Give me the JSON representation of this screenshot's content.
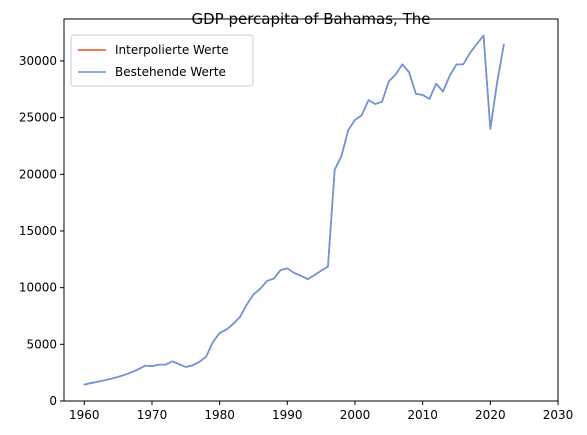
{
  "chart_data": {
    "type": "line",
    "title": "GDP percapita of Bahamas, The",
    "xlabel": "",
    "ylabel": "",
    "xlim": [
      1957,
      2030
    ],
    "ylim": [
      0,
      33700
    ],
    "xticks": [
      1960,
      1970,
      1980,
      1990,
      2000,
      2010,
      2020,
      2030
    ],
    "yticks": [
      0,
      5000,
      10000,
      15000,
      20000,
      25000,
      30000
    ],
    "grid": false,
    "legend_position": "top-left",
    "series": [
      {
        "name": "Interpolierte Werte",
        "color": "#e8501a",
        "x": [
          1960,
          1961,
          1962,
          1963,
          1964,
          1965,
          1966,
          1967,
          1968,
          1969,
          1970,
          1971,
          1972,
          1973,
          1974,
          1975,
          1976,
          1977,
          1978,
          1979,
          1980,
          1981,
          1982,
          1983,
          1984,
          1985,
          1986,
          1987,
          1988,
          1989,
          1990,
          1991,
          1992,
          1993,
          1994,
          1995,
          1996,
          1997,
          1998,
          1999,
          2000,
          2001,
          2002,
          2003,
          2004,
          2005,
          2006,
          2007,
          2008,
          2009,
          2010,
          2011,
          2012,
          2013,
          2014,
          2015,
          2016,
          2017,
          2018,
          2019,
          2020,
          2021,
          2022
        ],
        "values": [
          1450,
          1580,
          1700,
          1830,
          1970,
          2130,
          2320,
          2540,
          2800,
          3120,
          3070,
          3200,
          3200,
          3500,
          3250,
          3000,
          3150,
          3450,
          3900,
          5200,
          6000,
          6300,
          6800,
          7400,
          8500,
          9400,
          9900,
          10600,
          10800,
          11550,
          11700,
          11300,
          11050,
          10750,
          11100,
          11500,
          11850,
          20400,
          21600,
          23900,
          24800,
          25200,
          26550,
          26200,
          26400,
          28200,
          28800,
          29700,
          29000,
          27100,
          27000,
          26650,
          28000,
          27300,
          28700,
          29700,
          29700,
          30700,
          31500,
          32250,
          24000,
          28100,
          31450
        ]
      },
      {
        "name": "Bestehende Werte",
        "color": "#6495ed",
        "x": [
          1960,
          1961,
          1962,
          1963,
          1964,
          1965,
          1966,
          1967,
          1968,
          1969,
          1970,
          1971,
          1972,
          1973,
          1974,
          1975,
          1976,
          1977,
          1978,
          1979,
          1980,
          1981,
          1982,
          1983,
          1984,
          1985,
          1986,
          1987,
          1988,
          1989,
          1990,
          1991,
          1992,
          1993,
          1994,
          1995,
          1996,
          1997,
          1998,
          1999,
          2000,
          2001,
          2002,
          2003,
          2004,
          2005,
          2006,
          2007,
          2008,
          2009,
          2010,
          2011,
          2012,
          2013,
          2014,
          2015,
          2016,
          2017,
          2018,
          2019,
          2020,
          2021,
          2022
        ],
        "values": [
          1450,
          1580,
          1700,
          1830,
          1970,
          2130,
          2320,
          2540,
          2800,
          3120,
          3070,
          3200,
          3200,
          3500,
          3250,
          3000,
          3150,
          3450,
          3900,
          5200,
          6000,
          6300,
          6800,
          7400,
          8500,
          9400,
          9900,
          10600,
          10800,
          11550,
          11700,
          11300,
          11050,
          10750,
          11100,
          11500,
          11850,
          20400,
          21600,
          23900,
          24800,
          25200,
          26550,
          26200,
          26400,
          28200,
          28800,
          29700,
          29000,
          27100,
          27000,
          26650,
          28000,
          27300,
          28700,
          29700,
          29700,
          30700,
          31500,
          32250,
          24000,
          28100,
          31450
        ]
      }
    ]
  }
}
